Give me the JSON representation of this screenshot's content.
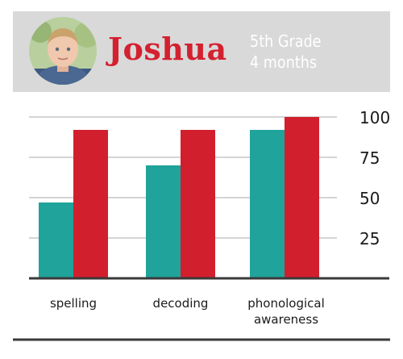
{
  "profile": {
    "name": "Joshua",
    "grade": "5th Grade",
    "duration": "4 months"
  },
  "chart_data": {
    "type": "bar",
    "categories": [
      "spelling",
      [
        "decoding"
      ],
      [
        "phonological",
        "awareness"
      ]
    ],
    "series": [
      {
        "values": [
          47,
          70,
          92
        ],
        "color": "#1fa39a"
      },
      {
        "values": [
          92,
          92,
          100
        ],
        "color": "#d21f2e"
      }
    ],
    "yticks": [
      25,
      50,
      75,
      100
    ],
    "ylim": [
      0,
      100
    ],
    "grid": true,
    "yaxis_side": "right"
  }
}
